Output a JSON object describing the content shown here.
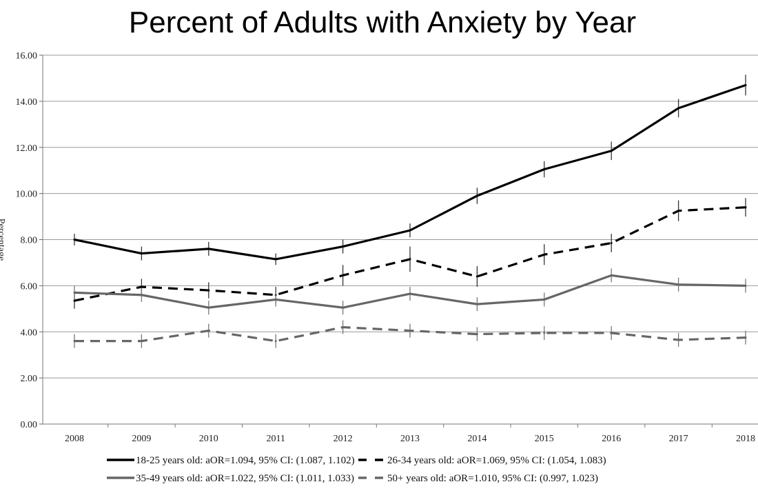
{
  "chart_data": {
    "type": "line",
    "title": "Percent of Adults with Anxiety by Year",
    "ylabel": "Percentage",
    "xlabel": "",
    "x": [
      "2008",
      "2009",
      "2010",
      "2011",
      "2012",
      "2013",
      "2014",
      "2015",
      "2016",
      "2017",
      "2018"
    ],
    "ylim": [
      0,
      16
    ],
    "yticks": [
      "0.00",
      "2.00",
      "4.00",
      "6.00",
      "8.00",
      "10.00",
      "12.00",
      "14.00",
      "16.00"
    ],
    "grid": true,
    "legend_position": "bottom",
    "series": [
      {
        "name": "18-25 years old: aOR=1.094, 95% CI: (1.087, 1.102)",
        "color": "#000000",
        "dash": false,
        "values": [
          8.0,
          7.4,
          7.6,
          7.15,
          7.7,
          8.4,
          9.9,
          11.05,
          11.85,
          13.7,
          14.7
        ],
        "error": [
          0.25,
          0.3,
          0.3,
          0.25,
          0.3,
          0.3,
          0.35,
          0.35,
          0.4,
          0.4,
          0.45
        ]
      },
      {
        "name": "26-34 years old: aOR=1.069, 95% CI: (1.054, 1.083)",
        "color": "#000000",
        "dash": true,
        "values": [
          5.35,
          5.95,
          5.8,
          5.6,
          6.45,
          7.15,
          6.4,
          7.35,
          7.85,
          9.25,
          9.4
        ],
        "error": [
          0.35,
          0.35,
          0.35,
          0.35,
          0.45,
          0.55,
          0.45,
          0.45,
          0.4,
          0.45,
          0.4
        ]
      },
      {
        "name": "35-49 years old: aOR=1.022, 95% CI: (1.011, 1.033)",
        "color": "#666666",
        "dash": false,
        "values": [
          5.7,
          5.6,
          5.05,
          5.4,
          5.05,
          5.65,
          5.2,
          5.4,
          6.45,
          6.05,
          6.0
        ],
        "error": [
          0.3,
          0.3,
          0.3,
          0.3,
          0.3,
          0.3,
          0.3,
          0.3,
          0.3,
          0.3,
          0.3
        ]
      },
      {
        "name": "50+ years old: aOR=1.010, 95% CI: (0.997, 1.023)",
        "color": "#666666",
        "dash": true,
        "values": [
          3.6,
          3.6,
          4.05,
          3.6,
          4.2,
          4.05,
          3.9,
          3.95,
          3.95,
          3.65,
          3.75
        ],
        "error": [
          0.3,
          0.3,
          0.3,
          0.3,
          0.3,
          0.3,
          0.3,
          0.3,
          0.3,
          0.3,
          0.3
        ]
      }
    ]
  }
}
